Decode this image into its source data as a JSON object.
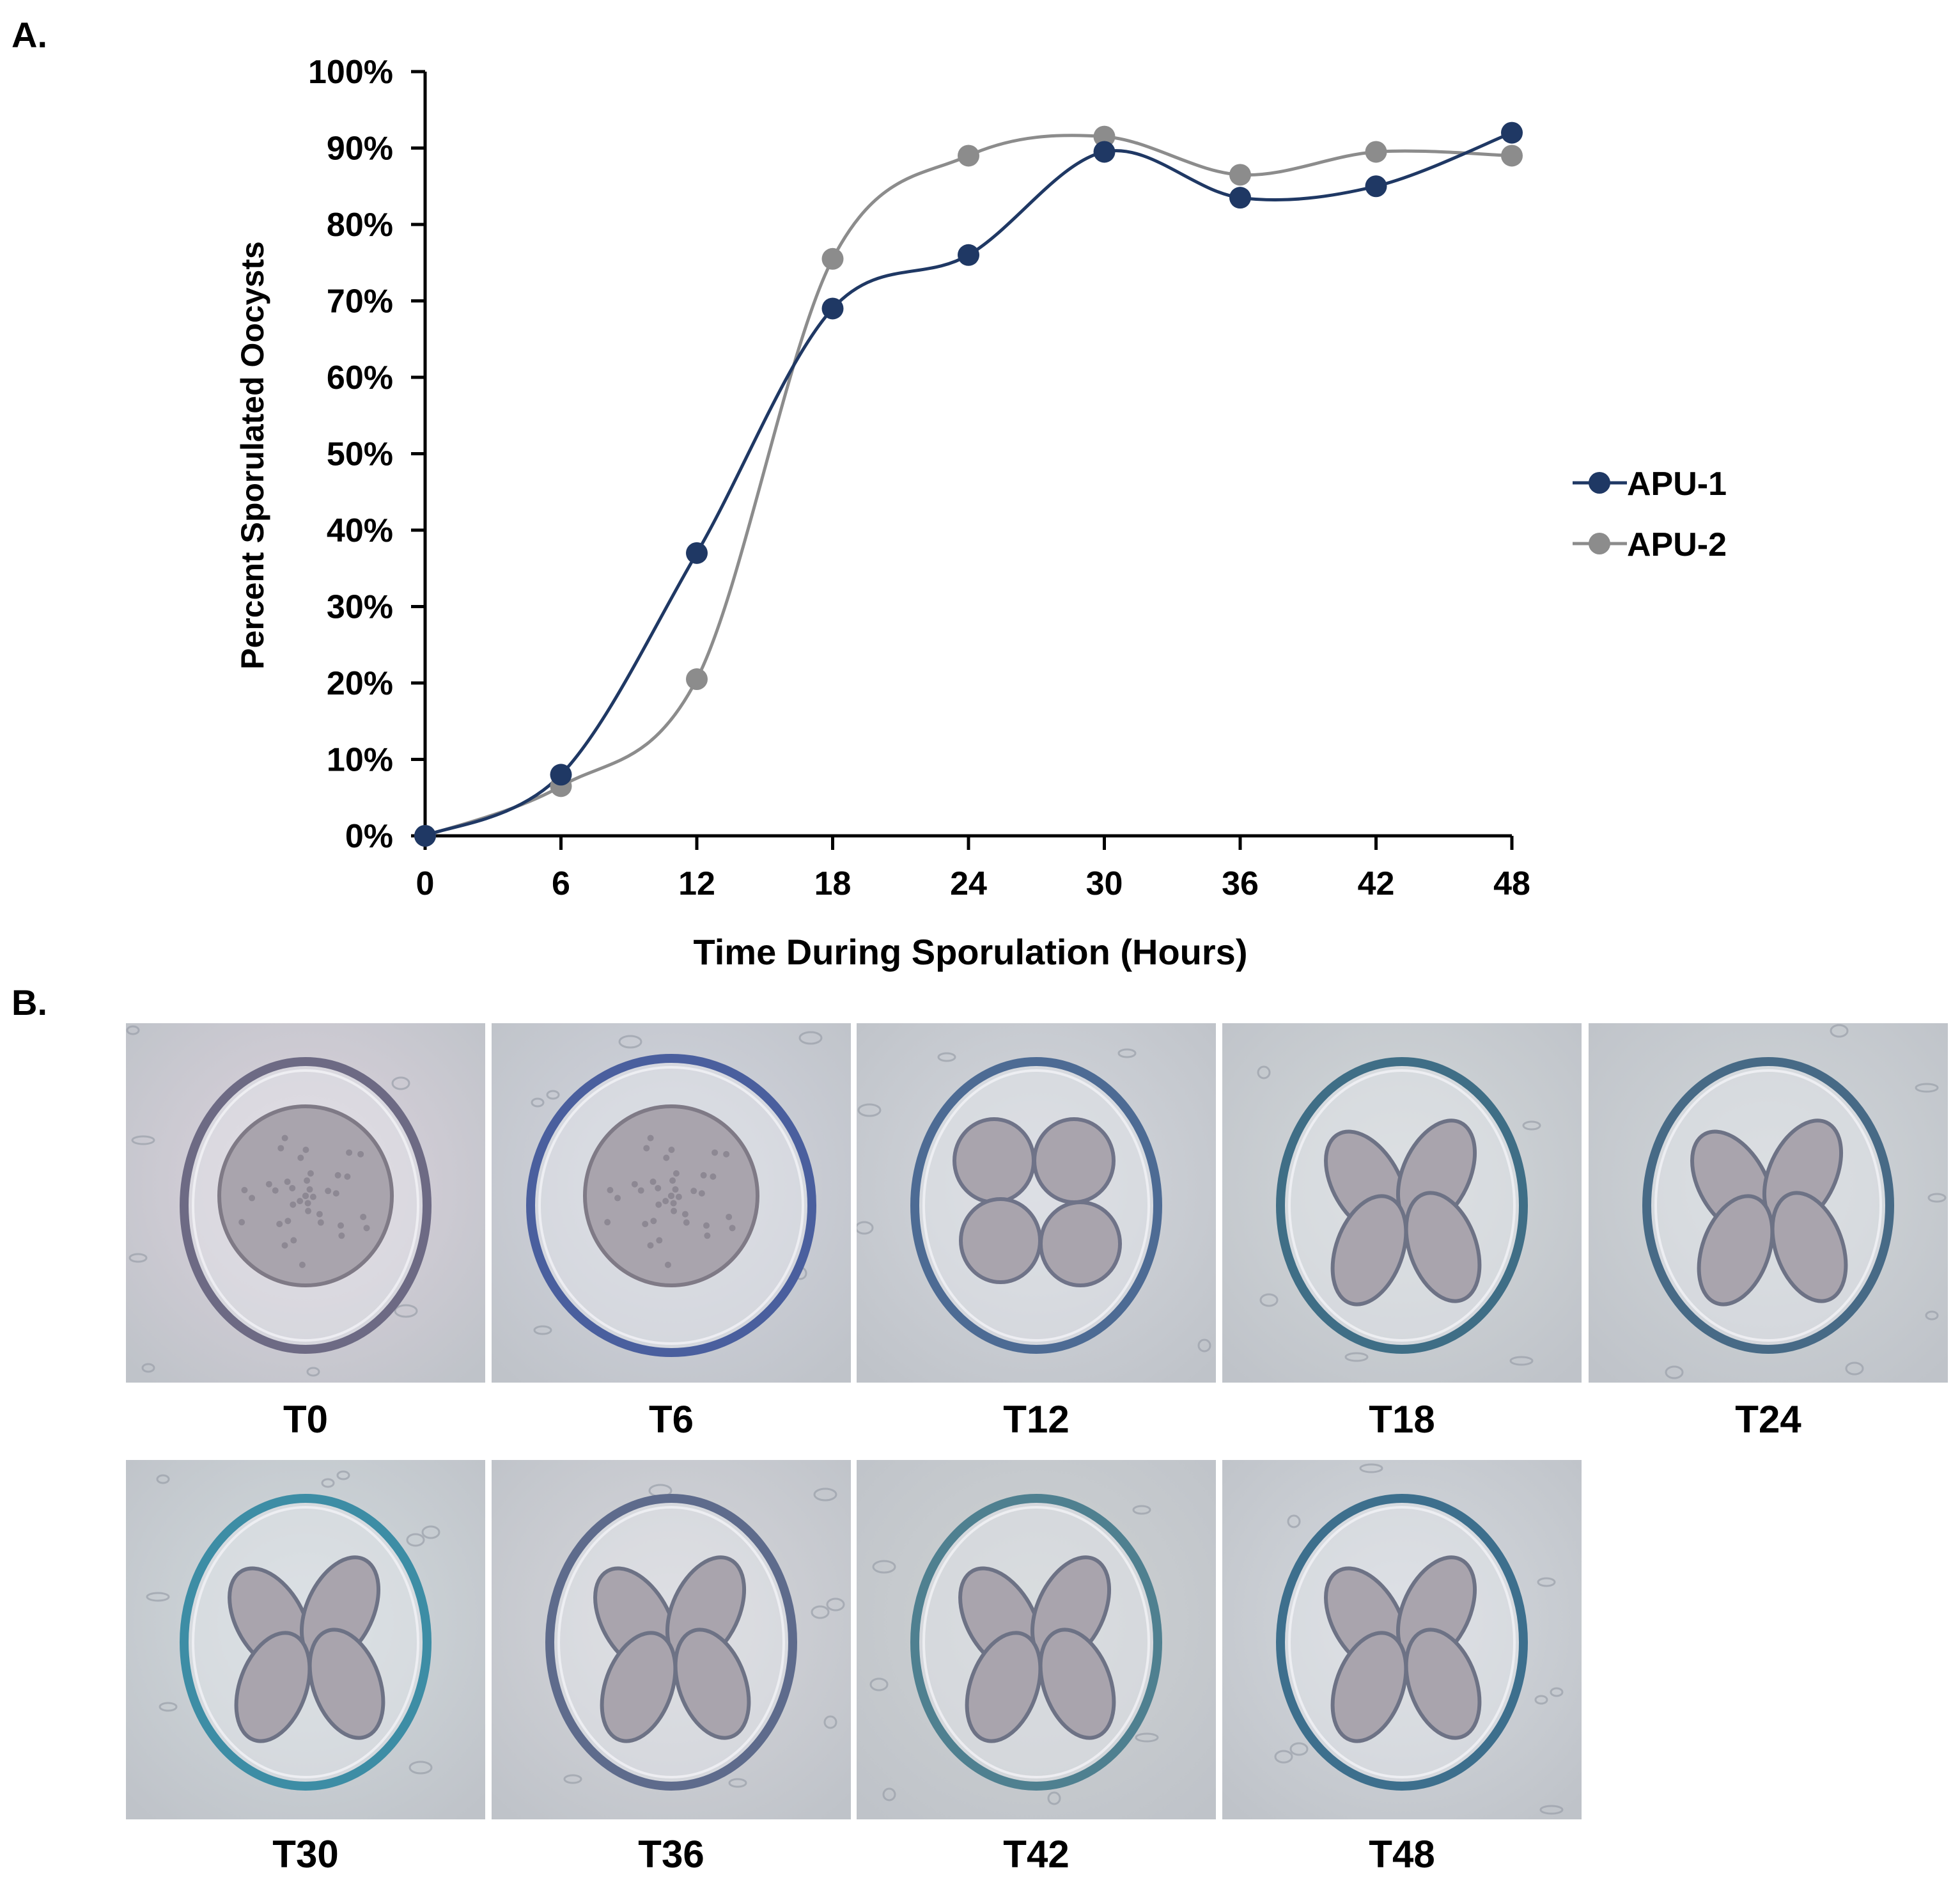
{
  "panels": {
    "a": "A.",
    "b": "B."
  },
  "chart_data": {
    "type": "line",
    "smooth": true,
    "xlabel": "Time During Sporulation (Hours)",
    "ylabel": "Percent Sporulated Oocysts",
    "x": [
      0,
      6,
      12,
      18,
      24,
      30,
      36,
      42,
      48
    ],
    "xticks": [
      "0",
      "6",
      "12",
      "18",
      "24",
      "30",
      "36",
      "42",
      "48"
    ],
    "yticks": [
      "0%",
      "10%",
      "20%",
      "30%",
      "40%",
      "50%",
      "60%",
      "70%",
      "80%",
      "90%",
      "100%"
    ],
    "xlim": [
      0,
      48
    ],
    "ylim": [
      0,
      100
    ],
    "legend_position": "right",
    "series": [
      {
        "name": "APU-1",
        "color": "#1f3864",
        "values": [
          0,
          8,
          37,
          69,
          76,
          89.5,
          83.5,
          85,
          92
        ]
      },
      {
        "name": "APU-2",
        "color": "#8c8c8c",
        "values": [
          0,
          6.5,
          20.5,
          75.5,
          89,
          91.5,
          86.5,
          89.5,
          89
        ]
      }
    ]
  },
  "micrographs": [
    {
      "label": "T0",
      "stage": 0,
      "background": "#ddd3de",
      "wall": "#6d6a84"
    },
    {
      "label": "T6",
      "stage": 1,
      "background": "#d4d6e0",
      "wall": "#4a5f9e"
    },
    {
      "label": "T12",
      "stage": 2,
      "background": "#d5d8de",
      "wall": "#4d6b94"
    },
    {
      "label": "T18",
      "stage": 3,
      "background": "#d4d9db",
      "wall": "#3f6e86"
    },
    {
      "label": "T24",
      "stage": 3,
      "background": "#d2d7da",
      "wall": "#476a86"
    },
    {
      "label": "T30",
      "stage": 3,
      "background": "#d3dbde",
      "wall": "#3d8da5"
    },
    {
      "label": "T36",
      "stage": 3,
      "background": "#d7d7dc",
      "wall": "#5e6b8c"
    },
    {
      "label": "T42",
      "stage": 3,
      "background": "#cfd3d4",
      "wall": "#4f8090"
    },
    {
      "label": "T48",
      "stage": 3,
      "background": "#d6dadf",
      "wall": "#3d6f8d"
    }
  ]
}
